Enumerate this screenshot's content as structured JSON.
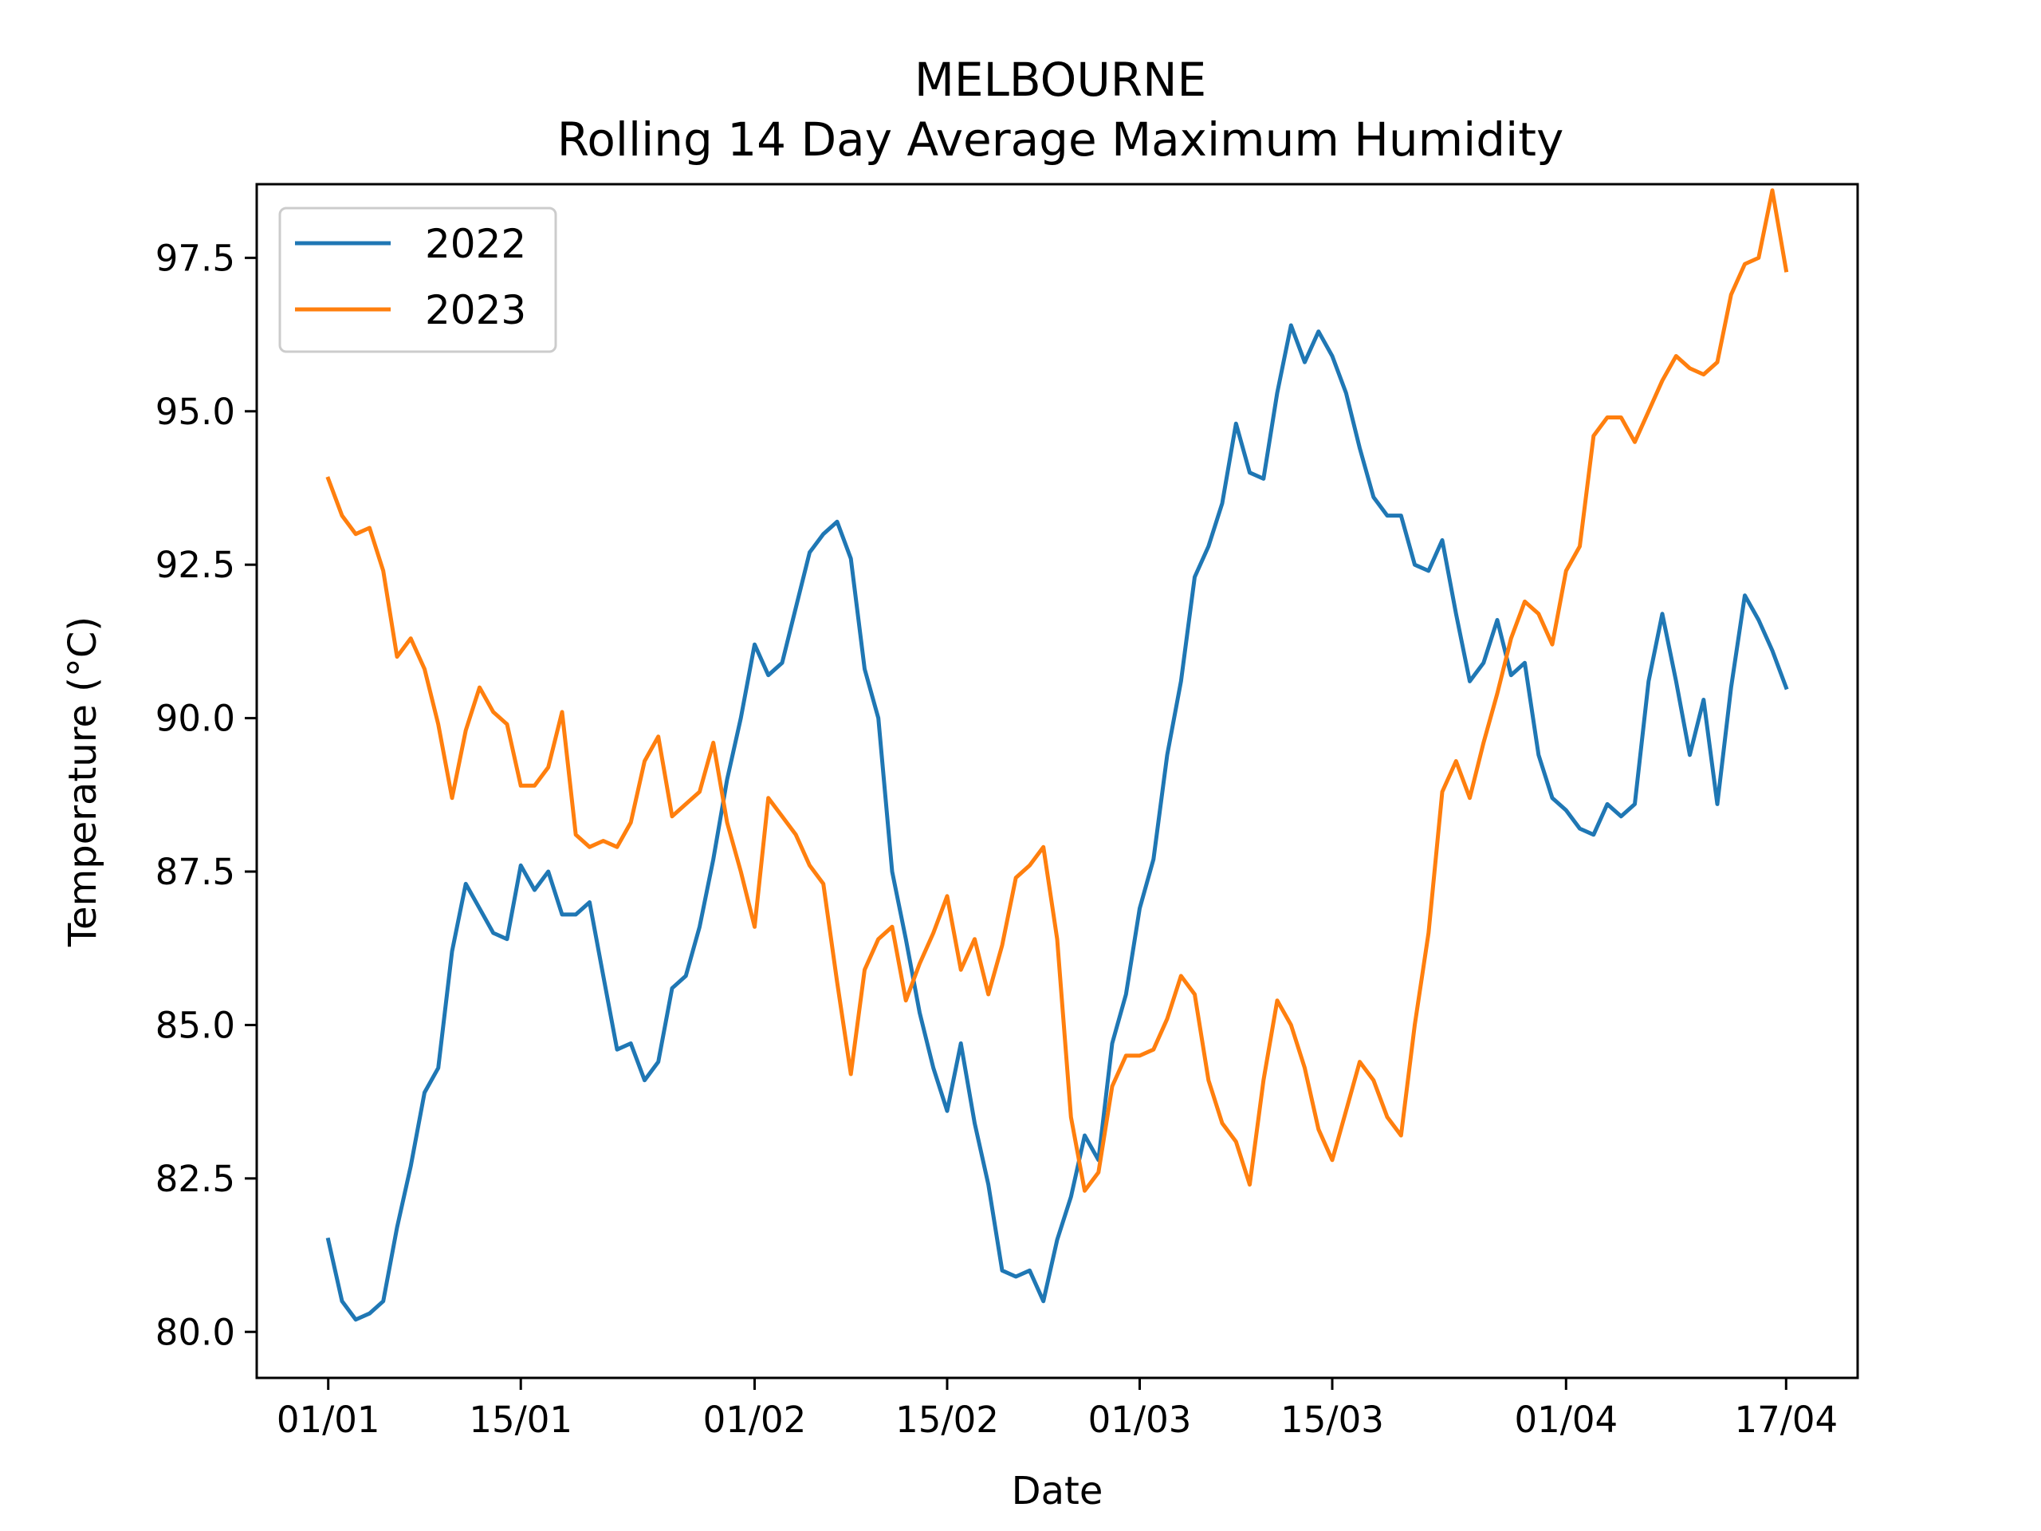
{
  "chart_data": {
    "type": "line",
    "title": "MELBOURNE",
    "subtitle": "Rolling 14 Day Average Maximum Humidity",
    "xlabel": "Date",
    "ylabel": "Temperature (°C)",
    "x_start": "01/01",
    "x_ticks": [
      {
        "label": "01/01",
        "day": 0
      },
      {
        "label": "15/01",
        "day": 14
      },
      {
        "label": "01/02",
        "day": 31
      },
      {
        "label": "15/02",
        "day": 45
      },
      {
        "label": "01/03",
        "day": 59
      },
      {
        "label": "15/03",
        "day": 73
      },
      {
        "label": "01/04",
        "day": 90
      },
      {
        "label": "17/04",
        "day": 106
      }
    ],
    "xlim": [
      -5.2,
      111.2
    ],
    "y_ticks": [
      80.0,
      82.5,
      85.0,
      87.5,
      90.0,
      92.5,
      95.0,
      97.5
    ],
    "ylim": [
      79.25,
      98.7
    ],
    "grid": false,
    "legend_position": "top-left",
    "series": [
      {
        "name": "2022",
        "color": "#1f77b4",
        "values": [
          81.5,
          80.5,
          80.2,
          80.3,
          80.5,
          81.7,
          82.7,
          83.9,
          84.3,
          86.2,
          87.3,
          86.9,
          86.5,
          86.4,
          87.6,
          87.2,
          87.5,
          86.8,
          86.8,
          87.0,
          85.8,
          84.6,
          84.7,
          84.1,
          84.4,
          85.6,
          85.8,
          86.6,
          87.7,
          89.0,
          90.0,
          91.2,
          90.7,
          90.9,
          91.8,
          92.7,
          93.0,
          93.2,
          92.6,
          90.8,
          90.0,
          87.5,
          86.4,
          85.2,
          84.3,
          83.6,
          84.7,
          83.4,
          82.4,
          81.0,
          80.9,
          81.0,
          80.5,
          81.5,
          82.2,
          83.2,
          82.8,
          84.7,
          85.5,
          86.9,
          87.7,
          89.4,
          90.6,
          92.3,
          92.8,
          93.5,
          94.8,
          94.0,
          93.9,
          95.3,
          96.4,
          95.8,
          96.3,
          95.9,
          95.3,
          94.4,
          93.6,
          93.3,
          93.3,
          92.5,
          92.4,
          92.9,
          91.7,
          90.6,
          90.9,
          91.6,
          90.7,
          90.9,
          89.4,
          88.7,
          88.5,
          88.2,
          88.1,
          88.6,
          88.4,
          88.6,
          90.6,
          91.7,
          90.6,
          89.4,
          90.3,
          88.6,
          90.5,
          92.0,
          91.6,
          91.1,
          90.5
        ]
      },
      {
        "name": "2023",
        "color": "#ff7f0e",
        "values": [
          93.9,
          93.3,
          93.0,
          93.1,
          92.4,
          91.0,
          91.3,
          90.8,
          89.9,
          88.7,
          89.8,
          90.5,
          90.1,
          89.9,
          88.9,
          88.9,
          89.2,
          90.1,
          88.1,
          87.9,
          88.0,
          87.9,
          88.3,
          89.3,
          89.7,
          88.4,
          88.6,
          88.8,
          89.6,
          88.3,
          87.5,
          86.6,
          88.7,
          88.4,
          88.1,
          87.6,
          87.3,
          85.7,
          84.2,
          85.9,
          86.4,
          86.6,
          85.4,
          86.0,
          86.5,
          87.1,
          85.9,
          86.4,
          85.5,
          86.3,
          87.4,
          87.6,
          87.9,
          86.4,
          83.5,
          82.3,
          82.6,
          84.0,
          84.5,
          84.5,
          84.6,
          85.1,
          85.8,
          85.5,
          84.1,
          83.4,
          83.1,
          82.4,
          84.1,
          85.4,
          85.0,
          84.3,
          83.3,
          82.8,
          83.6,
          84.4,
          84.1,
          83.5,
          83.2,
          85.0,
          86.5,
          88.8,
          89.3,
          88.7,
          89.6,
          90.4,
          91.3,
          91.9,
          91.7,
          91.2,
          92.4,
          92.8,
          94.6,
          94.9,
          94.9,
          94.5,
          95.0,
          95.5,
          95.9,
          95.7,
          95.6,
          95.8,
          96.9,
          97.4,
          97.5,
          98.6,
          97.3
        ]
      }
    ]
  }
}
